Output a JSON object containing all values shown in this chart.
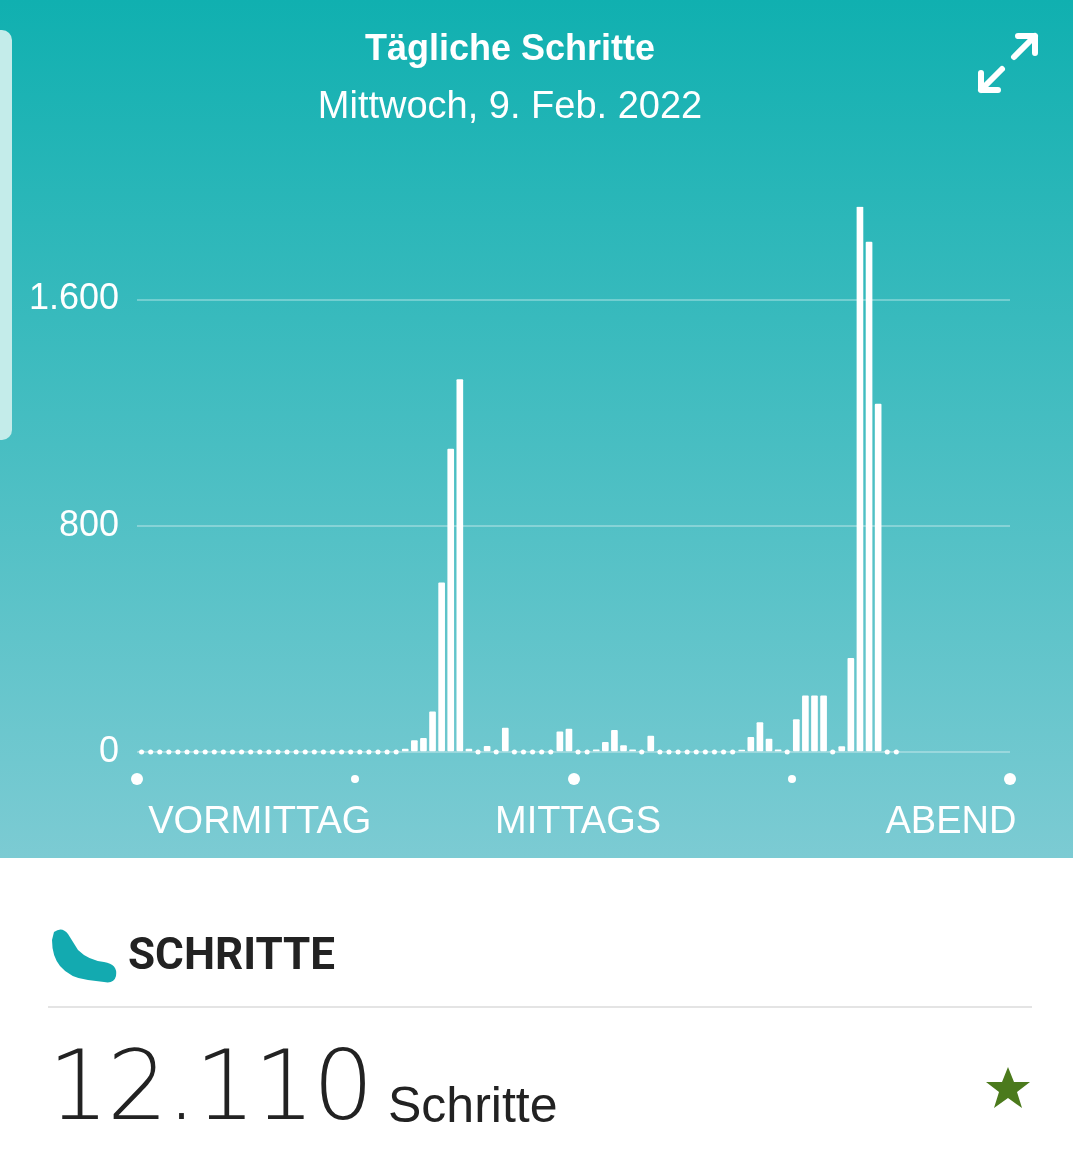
{
  "chart_data": {
    "type": "bar",
    "title": "Tägliche Schritte",
    "subtitle": "Mittwoch, 9. Feb. 2022",
    "categories": [
      null,
      null,
      null,
      null,
      null,
      null,
      null,
      null,
      null,
      null,
      null,
      null,
      null,
      "VORMITTAG",
      null,
      null,
      null,
      null,
      null,
      null,
      null,
      null,
      null,
      null,
      null,
      null,
      null,
      null,
      null,
      null,
      null,
      null,
      null,
      null,
      null,
      null,
      null,
      null,
      null,
      null,
      null,
      null,
      null,
      null,
      null,
      null,
      null,
      null,
      "MITTAGS",
      null,
      null,
      null,
      null,
      null,
      null,
      null,
      null,
      null,
      null,
      null,
      null,
      null,
      null,
      null,
      null,
      null,
      null,
      null,
      null,
      null,
      null,
      null,
      null,
      null,
      null,
      null,
      null,
      null,
      null,
      null,
      null,
      null,
      null,
      null,
      null,
      null,
      null,
      null,
      null,
      "ABEND",
      null,
      null,
      null,
      null,
      null,
      null
    ],
    "values": [
      0,
      0,
      0,
      0,
      0,
      0,
      0,
      0,
      0,
      0,
      0,
      0,
      0,
      0,
      0,
      0,
      0,
      0,
      0,
      0,
      0,
      0,
      0,
      0,
      0,
      0,
      0,
      0,
      0,
      10,
      40,
      48,
      142,
      598,
      1071,
      1317,
      10,
      0,
      20,
      0,
      85,
      0,
      0,
      0,
      0,
      0,
      71,
      81,
      0,
      0,
      8,
      34,
      77,
      23,
      8,
      0,
      56,
      0,
      0,
      0,
      0,
      0,
      0,
      0,
      0,
      0,
      7,
      52,
      104,
      46,
      8,
      0,
      115,
      199,
      199,
      199,
      0,
      19,
      331,
      1928,
      1803,
      1230,
      0,
      0,
      null,
      null,
      null,
      null,
      null,
      null,
      null,
      null,
      null,
      null,
      null,
      null
    ],
    "color": "#ffffff",
    "ylim": [
      0,
      1928
    ],
    "yticks": [
      0,
      800,
      {
        "value": 1600,
        "label": "1.600"
      }
    ],
    "grid": "y",
    "annotations": [
      "SCHRITTE",
      "12.110",
      "Schritte"
    ]
  }
}
